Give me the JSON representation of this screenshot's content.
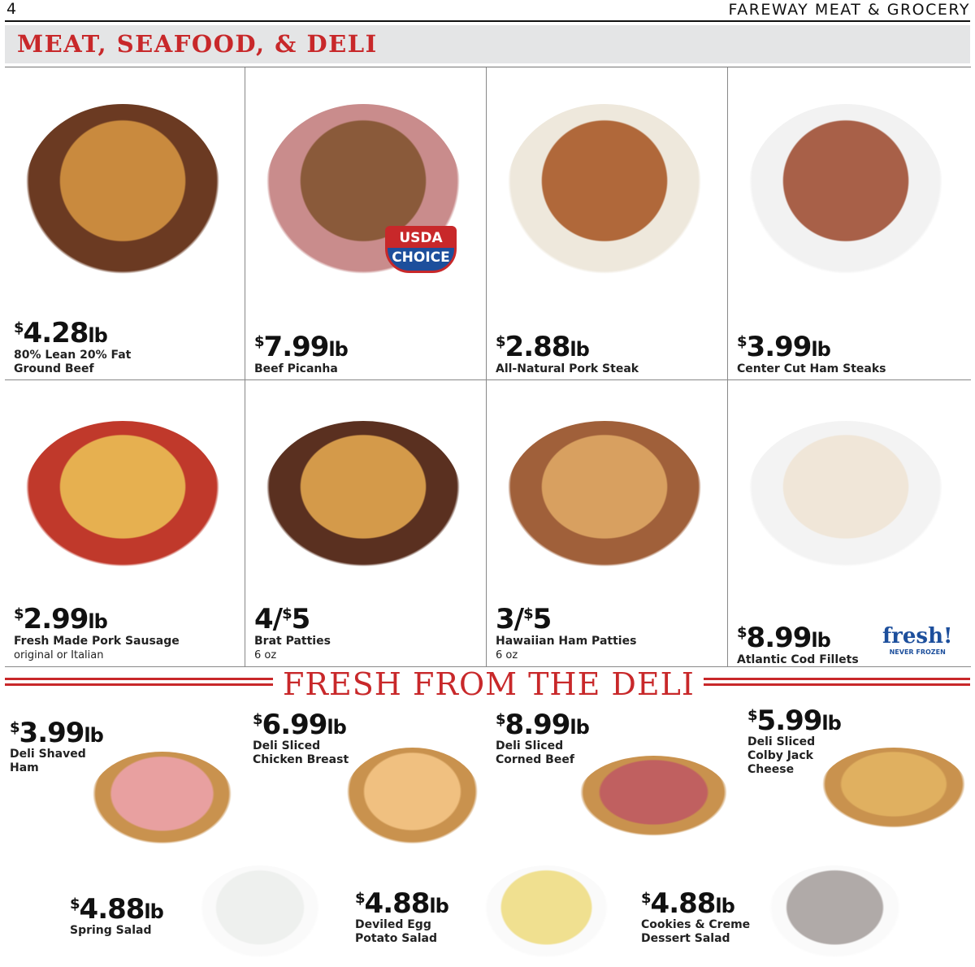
{
  "header": {
    "page_number": "4",
    "store": "FAREWAY MEAT & GROCERY",
    "section": "MEAT, SEAFOOD, & DELI"
  },
  "products": [
    {
      "price": "4.28",
      "unit": "lb",
      "name": "80% Lean 20% Fat",
      "name2": "Ground Beef",
      "sub": "",
      "img": "ground-beef-burger"
    },
    {
      "price": "7.99",
      "unit": "lb",
      "name": "Beef Picanha",
      "name2": "",
      "sub": "",
      "img": "beef-picanha"
    },
    {
      "price": "2.88",
      "unit": "lb",
      "name": "All-Natural Pork Steak",
      "name2": "",
      "sub": "",
      "img": "pork-steak"
    },
    {
      "price": "3.99",
      "unit": "lb",
      "name": "Center Cut Ham Steaks",
      "name2": "",
      "sub": "",
      "img": "ham-steaks"
    },
    {
      "price": "2.99",
      "unit": "lb",
      "name": "Fresh Made Pork Sausage",
      "name2": "",
      "sub": "original or Italian",
      "img": "spaghetti-meatballs"
    },
    {
      "multi": "4/",
      "price": "5",
      "unit": "",
      "name": "Brat Patties",
      "name2": "",
      "sub": "6 oz",
      "img": "brat-burger"
    },
    {
      "multi": "3/",
      "price": "5",
      "unit": "",
      "name": "Hawaiian Ham Patties",
      "name2": "",
      "sub": "6 oz",
      "img": "ham-patty-sandwich"
    },
    {
      "price": "8.99",
      "unit": "lb",
      "name": "Atlantic Cod Fillets",
      "name2": "",
      "sub": "",
      "img": "cod-fillet-plate"
    }
  ],
  "badges": {
    "usda1": "USDA",
    "usda2": "CHOICE",
    "fresh": "fresh!",
    "never_frozen": "NEVER FROZEN"
  },
  "deli": {
    "title": "FRESH FROM THE DELI",
    "items": [
      {
        "price": "3.99",
        "unit": "lb",
        "lines": [
          "Deli Shaved",
          "Ham"
        ]
      },
      {
        "price": "6.99",
        "unit": "lb",
        "lines": [
          "Deli Sliced",
          "Chicken Breast"
        ]
      },
      {
        "price": "8.99",
        "unit": "lb",
        "lines": [
          "Deli Sliced",
          "Corned Beef"
        ]
      },
      {
        "price": "5.99",
        "unit": "lb",
        "lines": [
          "Deli Sliced",
          "Colby Jack",
          "Cheese"
        ]
      },
      {
        "price": "4.88",
        "unit": "lb",
        "lines": [
          "Spring Salad"
        ]
      },
      {
        "price": "4.88",
        "unit": "lb",
        "lines": [
          "Deviled Egg",
          "Potato Salad"
        ]
      },
      {
        "price": "4.88",
        "unit": "lb",
        "lines": [
          "Cookies & Creme",
          "Dessert Salad"
        ]
      }
    ]
  },
  "colors": {
    "accent": "#c8282a",
    "band": "#e4e5e6"
  }
}
